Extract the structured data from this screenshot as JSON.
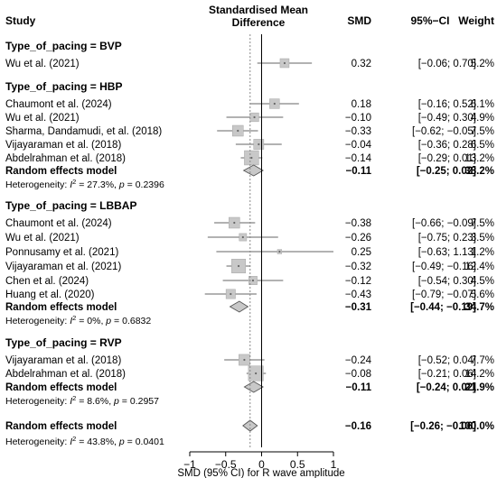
{
  "chart_data": {
    "type": "forest",
    "header": {
      "study": "Study",
      "plot_title_1": "Standardised Mean",
      "plot_title_2": "Difference",
      "smd": "SMD",
      "ci": "95%−CI",
      "weight": "Weight"
    },
    "xlabel": "SMD (95% CI) for R wave amplitude",
    "xlim": [
      -1,
      1
    ],
    "xticks": [
      "−1",
      "−0.5",
      "0",
      "0.5",
      "1"
    ],
    "xtick_values": [
      -1,
      -0.5,
      0,
      0.5,
      1
    ],
    "grid": false,
    "reference_line": 0,
    "subgroups": [
      {
        "label": "Type_of_pacing = BVP",
        "studies": [
          {
            "name": "Wu et al. (2021)",
            "est": 0.32,
            "lo": -0.06,
            "hi": 0.7,
            "smd": "0.32",
            "ci": "[−0.06; 0.70]",
            "weight": "5.2%",
            "w": 5.2
          }
        ]
      },
      {
        "label": "Type_of_pacing = HBP",
        "studies": [
          {
            "name": "Chaumont et al. (2024)",
            "est": 0.18,
            "lo": -0.16,
            "hi": 0.52,
            "smd": "0.18",
            "ci": "[−0.16; 0.52]",
            "weight": "6.1%",
            "w": 6.1
          },
          {
            "name": "Wu et al. (2021)",
            "est": -0.1,
            "lo": -0.49,
            "hi": 0.3,
            "smd": "−0.10",
            "ci": "[−0.49; 0.30]",
            "weight": "4.9%",
            "w": 4.9
          },
          {
            "name": "Sharma, Dandamudi, et al. (2018)",
            "est": -0.33,
            "lo": -0.62,
            "hi": -0.05,
            "smd": "−0.33",
            "ci": "[−0.62; −0.05]",
            "weight": "7.5%",
            "w": 7.5
          },
          {
            "name": "Vijayaraman et al. (2018)",
            "est": -0.04,
            "lo": -0.36,
            "hi": 0.28,
            "smd": "−0.04",
            "ci": "[−0.36; 0.28]",
            "weight": "6.5%",
            "w": 6.5
          },
          {
            "name": "Abdelrahman et al. (2018)",
            "est": -0.14,
            "lo": -0.29,
            "hi": 0.01,
            "smd": "−0.14",
            "ci": "[−0.29; 0.01]",
            "weight": "13.2%",
            "w": 13.2
          }
        ],
        "summary": {
          "name": "Random effects model",
          "est": -0.11,
          "lo": -0.25,
          "hi": 0.02,
          "smd": "−0.11",
          "ci": "[−0.25; 0.02]",
          "weight": "38.2%"
        },
        "heterogeneity": {
          "prefix": "Heterogeneity: ",
          "i": "I",
          "sup": "2",
          "mid": " = 27.3%, ",
          "p": "p",
          "end": " = 0.2396"
        }
      },
      {
        "label": "Type_of_pacing = LBBAP",
        "studies": [
          {
            "name": "Chaumont et al. (2024)",
            "est": -0.38,
            "lo": -0.66,
            "hi": -0.09,
            "smd": "−0.38",
            "ci": "[−0.66; −0.09]",
            "weight": "7.5%",
            "w": 7.5
          },
          {
            "name": "Wu et al. (2021)",
            "est": -0.26,
            "lo": -0.75,
            "hi": 0.23,
            "smd": "−0.26",
            "ci": "[−0.75; 0.23]",
            "weight": "3.5%",
            "w": 3.5
          },
          {
            "name": "Ponnusamy et al. (2021)",
            "est": 0.25,
            "lo": -0.63,
            "hi": 1.13,
            "smd": "0.25",
            "ci": "[−0.63; 1.13]",
            "weight": "1.2%",
            "w": 1.2
          },
          {
            "name": "Vijayaraman et al. (2021)",
            "est": -0.32,
            "lo": -0.49,
            "hi": -0.16,
            "smd": "−0.32",
            "ci": "[−0.49; −0.16]",
            "weight": "12.4%",
            "w": 12.4
          },
          {
            "name": "Chen et al. (2024)",
            "est": -0.12,
            "lo": -0.54,
            "hi": 0.3,
            "smd": "−0.12",
            "ci": "[−0.54; 0.30]",
            "weight": "4.5%",
            "w": 4.5
          },
          {
            "name": "Huang et al. (2020)",
            "est": -0.43,
            "lo": -0.79,
            "hi": -0.07,
            "smd": "−0.43",
            "ci": "[−0.79; −0.07]",
            "weight": "5.6%",
            "w": 5.6
          }
        ],
        "summary": {
          "name": "Random effects model",
          "est": -0.31,
          "lo": -0.44,
          "hi": -0.19,
          "smd": "−0.31",
          "ci": "[−0.44; −0.19]",
          "weight": "34.7%"
        },
        "heterogeneity": {
          "prefix": "Heterogeneity: ",
          "i": "I",
          "sup": "2",
          "mid": " = 0%, ",
          "p": "p",
          "end": " = 0.6832"
        }
      },
      {
        "label": "Type_of_pacing = RVP",
        "studies": [
          {
            "name": "Vijayaraman et al. (2018)",
            "est": -0.24,
            "lo": -0.52,
            "hi": 0.04,
            "smd": "−0.24",
            "ci": "[−0.52; 0.04]",
            "weight": "7.7%",
            "w": 7.7
          },
          {
            "name": "Abdelrahman et al. (2018)",
            "est": -0.08,
            "lo": -0.21,
            "hi": 0.06,
            "smd": "−0.08",
            "ci": "[−0.21; 0.06]",
            "weight": "14.2%",
            "w": 14.2
          }
        ],
        "summary": {
          "name": "Random effects model",
          "est": -0.11,
          "lo": -0.24,
          "hi": 0.02,
          "smd": "−0.11",
          "ci": "[−0.24; 0.02]",
          "weight": "21.9%"
        },
        "heterogeneity": {
          "prefix": "Heterogeneity: ",
          "i": "I",
          "sup": "2",
          "mid": " = 8.6%, ",
          "p": "p",
          "end": " = 0.2957"
        }
      }
    ],
    "overall": {
      "summary": {
        "name": "Random effects model",
        "est": -0.16,
        "lo": -0.26,
        "hi": -0.06,
        "smd": "−0.16",
        "ci": "[−0.26; −0.06]",
        "weight": "100.0%"
      },
      "heterogeneity": {
        "prefix": "Heterogeneity: ",
        "i": "I",
        "sup": "2",
        "mid": " = 43.8%, ",
        "p": "p",
        "end": " = 0.0401"
      }
    },
    "colors": {
      "square_fill": "#c8c8c8",
      "square_stroke": "#a6a6a6",
      "diamond_fill": "#c8c8c8",
      "diamond_stroke": "#555555",
      "line": "#000000",
      "dotted": "#888888"
    }
  }
}
